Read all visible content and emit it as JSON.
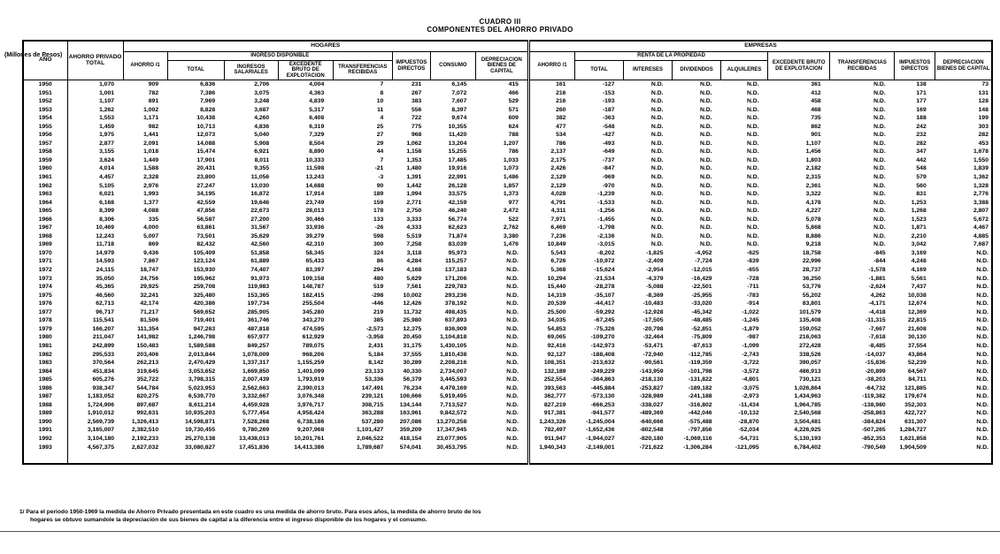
{
  "title": {
    "line1": "CUADRO III",
    "line2": "COMPONENTES DEL AHORRO PRIVADO"
  },
  "units_note": "(Millones de Pesos)",
  "footnote": {
    "line1": "1/ Para el período 1950-1969 la medida de Ahorro  Privado presentada en este cuadro es una medida de ahorro bruto. Para esos años, la medida de ahorro bruto de los",
    "line2": "hogares se obtuvo sumandole la depreciación de sus bienes de capital a la diferencia entre el ingreso disponible de los hogares y el consumo."
  },
  "table": {
    "headers": {
      "ano": "AÑO",
      "ahorro_privado_total": "AHORRO PRIVADO TOTAL",
      "hogares": "HOGARES",
      "empresas": "EMPRESAS",
      "ahorro_1": "AHORRO /1",
      "ingreso_disponible": "INGRESO DISPONIBLE",
      "total": "TOTAL",
      "ingresos_salariales": "INGRESOS SALARIALES",
      "excedente_bruto": "EXCEDENTE BRUTO DE EXPLOTACION",
      "transferencias_recibidas": "TRANSFERENCIAS RECIBIDAS",
      "impuestos_directos": "IMPUESTOS DIRECTOS",
      "consumo": "CONSUMO",
      "depreciacion_bienes": "DEPRECIACION BIENES DE CAPITAL",
      "renta_propiedad": "RENTA DE LA PROPIEDAD",
      "intereses": "INTERESES",
      "dividendos": "DIVIDENDOS",
      "alquileres": "ALQUILERES"
    },
    "rows": [
      [
        "1950",
        "1,070",
        "909",
        "6,836",
        "2,706",
        "4,004",
        "7",
        "231",
        "6,145",
        "415",
        "161",
        "-127",
        "N.D.",
        "N.D.",
        "N.D.",
        "361",
        "N.D.",
        "138",
        "73"
      ],
      [
        "1951",
        "1,001",
        "782",
        "7,386",
        "3,075",
        "4,363",
        "8",
        "267",
        "7,072",
        "466",
        "216",
        "-153",
        "N.D.",
        "N.D.",
        "N.D.",
        "412",
        "N.D.",
        "171",
        "131"
      ],
      [
        "1952",
        "1,107",
        "891",
        "7,969",
        "3,248",
        "4,839",
        "10",
        "383",
        "7,607",
        "529",
        "216",
        "-193",
        "N.D.",
        "N.D.",
        "N.D.",
        "458",
        "N.D.",
        "177",
        "128"
      ],
      [
        "1953",
        "1,262",
        "1,002",
        "8,828",
        "3,687",
        "5,317",
        "11",
        "556",
        "8,397",
        "571",
        "260",
        "-187",
        "N.D.",
        "N.D.",
        "N.D.",
        "468",
        "N.D.",
        "169",
        "148"
      ],
      [
        "1954",
        "1,553",
        "1,171",
        "10,438",
        "4,260",
        "6,408",
        "4",
        "722",
        "9,674",
        "609",
        "382",
        "-363",
        "N.D.",
        "N.D.",
        "N.D.",
        "735",
        "N.D.",
        "188",
        "199"
      ],
      [
        "1955",
        "1,459",
        "982",
        "10,713",
        "4,836",
        "6,319",
        "25",
        "775",
        "10,355",
        "624",
        "477",
        "-548",
        "N.D.",
        "N.D.",
        "N.D.",
        "862",
        "N.D.",
        "242",
        "303"
      ],
      [
        "1956",
        "1,975",
        "1,441",
        "12,073",
        "5,040",
        "7,329",
        "27",
        "968",
        "11,420",
        "788",
        "534",
        "-427",
        "N.D.",
        "N.D.",
        "N.D.",
        "901",
        "N.D.",
        "232",
        "282"
      ],
      [
        "1957",
        "2,877",
        "2,091",
        "14,088",
        "5,908",
        "8,504",
        "29",
        "1,062",
        "13,204",
        "1,207",
        "786",
        "-493",
        "N.D.",
        "N.D.",
        "N.D.",
        "1,107",
        "N.D.",
        "282",
        "453"
      ],
      [
        "1958",
        "3,155",
        "1,018",
        "15,474",
        "6,921",
        "8,890",
        "44",
        "1,158",
        "15,255",
        "786",
        "2,137",
        "-649",
        "N.D.",
        "N.D.",
        "N.D.",
        "1,456",
        "N.D.",
        "347",
        "1,678"
      ],
      [
        "1959",
        "3,624",
        "1,449",
        "17,901",
        "8,011",
        "10,333",
        "7",
        "1,353",
        "17,485",
        "1,033",
        "2,175",
        "-737",
        "N.D.",
        "N.D.",
        "N.D.",
        "1,803",
        "N.D.",
        "442",
        "1,550"
      ],
      [
        "1960",
        "4,014",
        "1,588",
        "20,431",
        "9,355",
        "11,598",
        "-21",
        "1,480",
        "19,916",
        "1,073",
        "2,426",
        "-847",
        "N.D.",
        "N.D.",
        "N.D.",
        "2,182",
        "N.D.",
        "548",
        "1,839"
      ],
      [
        "1961",
        "4,457",
        "2,328",
        "23,800",
        "11,056",
        "13,243",
        "-3",
        "1,391",
        "22,991",
        "1,486",
        "2,129",
        "-969",
        "N.D.",
        "N.D.",
        "N.D.",
        "2,315",
        "N.D.",
        "579",
        "1,362"
      ],
      [
        "1962",
        "5,105",
        "2,976",
        "27,247",
        "13,030",
        "14,688",
        "90",
        "1,442",
        "26,128",
        "1,857",
        "2,129",
        "-970",
        "N.D.",
        "N.D.",
        "N.D.",
        "2,361",
        "N.D.",
        "560",
        "1,328"
      ],
      [
        "1963",
        "6,021",
        "1,993",
        "34,195",
        "16,872",
        "17,914",
        "189",
        "1,994",
        "33,575",
        "1,373",
        "4,028",
        "-1,239",
        "N.D.",
        "N.D.",
        "N.D.",
        "3,322",
        "N.D.",
        "831",
        "2,776"
      ],
      [
        "1964",
        "6,168",
        "1,377",
        "42,559",
        "19,646",
        "23,749",
        "159",
        "2,771",
        "42,159",
        "977",
        "4,791",
        "-1,533",
        "N.D.",
        "N.D.",
        "N.D.",
        "4,178",
        "N.D.",
        "1,253",
        "3,388"
      ],
      [
        "1965",
        "8,399",
        "4,088",
        "47,856",
        "22,673",
        "28,013",
        "178",
        "2,750",
        "46,240",
        "2,472",
        "4,311",
        "-1,256",
        "N.D.",
        "N.D.",
        "N.D.",
        "4,227",
        "N.D.",
        "1,268",
        "2,807"
      ],
      [
        "1966",
        "8,306",
        "335",
        "56,587",
        "27,200",
        "30,466",
        "133",
        "3,333",
        "56,774",
        "522",
        "7,971",
        "-1,455",
        "N.D.",
        "N.D.",
        "N.D.",
        "5,078",
        "N.D.",
        "1,523",
        "5,672"
      ],
      [
        "1967",
        "10,469",
        "4,000",
        "63,861",
        "31,567",
        "33,936",
        "-26",
        "4,333",
        "62,623",
        "2,762",
        "6,469",
        "-1,798",
        "N.D.",
        "N.D.",
        "N.D.",
        "5,868",
        "N.D.",
        "1,871",
        "4,467"
      ],
      [
        "1968",
        "12,243",
        "5,007",
        "73,501",
        "35,629",
        "39,279",
        "598",
        "5,519",
        "71,874",
        "3,380",
        "7,236",
        "-2,136",
        "N.D.",
        "N.D.",
        "N.D.",
        "8,886",
        "N.D.",
        "2,210",
        "4,885"
      ],
      [
        "1969",
        "11,718",
        "869",
        "82,432",
        "42,560",
        "42,310",
        "300",
        "7,258",
        "83,039",
        "1,476",
        "10,849",
        "-3,015",
        "N.D.",
        "N.D.",
        "N.D.",
        "9,218",
        "N.D.",
        "3,042",
        "7,687"
      ],
      [
        "1970",
        "14,979",
        "9,436",
        "105,409",
        "51,858",
        "58,345",
        "324",
        "3,118",
        "95,973",
        "N.D.",
        "5,543",
        "-8,202",
        "-1,825",
        "-4,952",
        "-625",
        "18,758",
        "-845",
        "3,169",
        "N.D."
      ],
      [
        "1971",
        "14,593",
        "7,867",
        "123,124",
        "61,889",
        "65,433",
        "86",
        "4,284",
        "115,257",
        "N.D.",
        "6,726",
        "-10,972",
        "-2,409",
        "-7,724",
        "-839",
        "22,996",
        "-844",
        "4,248",
        "N.D."
      ],
      [
        "1972",
        "24,115",
        "18,747",
        "153,930",
        "74,407",
        "83,397",
        "294",
        "4,168",
        "137,183",
        "N.D.",
        "5,368",
        "-15,624",
        "-2,954",
        "-12,015",
        "-655",
        "28,737",
        "-1,578",
        "4,169",
        "N.D."
      ],
      [
        "1973",
        "35,050",
        "24,756",
        "195,962",
        "91,973",
        "109,158",
        "480",
        "5,629",
        "171,206",
        "N.D.",
        "10,294",
        "-21,534",
        "-4,379",
        "-16,429",
        "-728",
        "36,250",
        "-1,881",
        "5,561",
        "N.D."
      ],
      [
        "1974",
        "45,365",
        "29,925",
        "259,708",
        "119,983",
        "148,787",
        "519",
        "7,561",
        "229,783",
        "N.D.",
        "15,440",
        "-28,278",
        "-5,088",
        "-22,501",
        "-711",
        "53,776",
        "-2,624",
        "7,437",
        "N.D."
      ],
      [
        "1975",
        "46,560",
        "32,241",
        "325,480",
        "153,365",
        "182,415",
        "-298",
        "10,002",
        "293,236",
        "N.D.",
        "14,319",
        "-35,107",
        "-8,369",
        "-25,955",
        "-783",
        "55,202",
        "4,262",
        "10,038",
        "N.D."
      ],
      [
        "1976",
        "62,713",
        "42,174",
        "420,386",
        "197,734",
        "255,504",
        "-446",
        "12,426",
        "378,192",
        "N.D.",
        "20,539",
        "-44,417",
        "-10,483",
        "-33,020",
        "-914",
        "83,801",
        "-4,171",
        "12,674",
        "N.D."
      ],
      [
        "1977",
        "96,717",
        "71,217",
        "569,652",
        "285,905",
        "345,280",
        "219",
        "11,732",
        "498,435",
        "N.D.",
        "25,500",
        "-59,292",
        "-12,928",
        "-45,342",
        "-1,022",
        "101,579",
        "-4,418",
        "12,369",
        "N.D."
      ],
      [
        "1978",
        "115,541",
        "81,506",
        "719,401",
        "361,746",
        "343,270",
        "385",
        "25,980",
        "637,893",
        "N.D.",
        "34,035",
        "-67,245",
        "-17,505",
        "-48,485",
        "-1,245",
        "135,408",
        "-11,315",
        "22,815",
        "N.D."
      ],
      [
        "1979",
        "166,207",
        "111,354",
        "947,263",
        "487,818",
        "474,595",
        "-2,573",
        "12,375",
        "836,909",
        "N.D.",
        "54,853",
        "-75,326",
        "-20,798",
        "-52,851",
        "-1,879",
        "159,052",
        "-7,667",
        "21,608",
        "N.D."
      ],
      [
        "1980",
        "211,047",
        "141,982",
        "1,246,798",
        "657,977",
        "612,929",
        "-3,958",
        "20,450",
        "1,104,818",
        "N.D.",
        "69,065",
        "-109,270",
        "-32,464",
        "-75,809",
        "-987",
        "216,063",
        "-7,618",
        "30,130",
        "N.D."
      ],
      [
        "1981",
        "242,899",
        "150,483",
        "1,589,588",
        "849,257",
        "789,075",
        "2,431",
        "31,175",
        "1,430,105",
        "N.D.",
        "92,416",
        "-142,973",
        "-53,471",
        "-87,613",
        "-1,099",
        "272,428",
        "-8,485",
        "37,554",
        "N.D."
      ],
      [
        "1982",
        "295,533",
        "203,406",
        "2,013,844",
        "1,078,009",
        "968,206",
        "5,184",
        "37,555",
        "1,810,438",
        "N.D.",
        "92,127",
        "-188,408",
        "-72,940",
        "-112,785",
        "-2,743",
        "338,526",
        "-14,037",
        "43,864",
        "N.D."
      ],
      [
        "1983",
        "370,564",
        "262,213",
        "2,470,429",
        "1,337,317",
        "1,155,259",
        "8,142",
        "30,289",
        "2,208,216",
        "N.D.",
        "108,351",
        "-213,632",
        "-90,561",
        "-119,359",
        "-3,722",
        "390,057",
        "-15,836",
        "52,239",
        "N.D."
      ],
      [
        "1984",
        "451,834",
        "319,645",
        "3,053,652",
        "1,669,850",
        "1,401,099",
        "23,133",
        "40,330",
        "2,734,007",
        "N.D.",
        "132,189",
        "-249,229",
        "-143,959",
        "-101,798",
        "-3,572",
        "486,913",
        "-20,899",
        "64,567",
        "N.D."
      ],
      [
        "1985",
        "605,276",
        "352,722",
        "3,798,315",
        "2,007,439",
        "1,793,919",
        "53,336",
        "56,379",
        "3,445,593",
        "N.D.",
        "252,554",
        "-364,863",
        "-218,130",
        "-131,822",
        "-4,801",
        "730,121",
        "-38,203",
        "84,711",
        "N.D."
      ],
      [
        "1986",
        "938,347",
        "544,784",
        "5,023,953",
        "2,562,663",
        "2,390,013",
        "147,491",
        "76,234",
        "4,479,169",
        "N.D.",
        "393,563",
        "-445,884",
        "-253,827",
        "-189,182",
        "-3,075",
        "1,026,864",
        "-64,732",
        "121,885",
        "N.D."
      ],
      [
        "1987",
        "1,183,052",
        "820,275",
        "6,539,770",
        "3,332,667",
        "3,076,348",
        "239,121",
        "106,666",
        "5,919,495",
        "N.D.",
        "362,777",
        "-573,130",
        "-328,989",
        "-241,188",
        "-2,973",
        "1,434,963",
        "-119,382",
        "179,674",
        "N.D."
      ],
      [
        "1988",
        "1,724,906",
        "897,687",
        "8,611,214",
        "4,459,928",
        "3,976,717",
        "308,715",
        "134,144",
        "7,713,527",
        "N.D.",
        "827,219",
        "-666,253",
        "-338,027",
        "-316,802",
        "-11,434",
        "1,964,785",
        "-138,980",
        "352,303",
        "N.D."
      ],
      [
        "1989",
        "1,910,012",
        "992,631",
        "10,935,203",
        "5,777,454",
        "4,958,424",
        "363,288",
        "163,961",
        "9,842,572",
        "N.D.",
        "917,381",
        "-941,577",
        "-489,369",
        "-442,046",
        "-10,132",
        "2,540,568",
        "-258,863",
        "422,727",
        "N.D."
      ],
      [
        "1990",
        "2,569,739",
        "1,326,413",
        "14,598,871",
        "7,528,268",
        "6,738,186",
        "537,280",
        "207,086",
        "13,270,258",
        "N.D.",
        "1,243,326",
        "-1,245,004",
        "-640,666",
        "-575,488",
        "-28,870",
        "3,504,481",
        "-384,824",
        "631,307",
        "N.D."
      ],
      [
        "1991",
        "3,165,007",
        "2,382,510",
        "19,730,455",
        "9,780,269",
        "9,207,968",
        "1,101,427",
        "359,209",
        "17,347,945",
        "N.D.",
        "782,497",
        "-1,652,436",
        "-802,548",
        "-797,856",
        "-52,034",
        "4,226,925",
        "-507,265",
        "1,284,727",
        "N.D."
      ],
      [
        "1992",
        "3,104,180",
        "2,192,233",
        "25,270,138",
        "13,438,013",
        "10,201,761",
        "2,046,522",
        "418,154",
        "23,077,905",
        "N.D.",
        "911,947",
        "-1,944,027",
        "-820,180",
        "-1,069,116",
        "-54,731",
        "5,130,193",
        "-852,353",
        "1,621,858",
        "N.D."
      ],
      [
        "1993",
        "4,567,375",
        "2,627,032",
        "33,080,827",
        "17,451,836",
        "14,413,386",
        "1,789,687",
        "574,041",
        "30,453,795",
        "N.D.",
        "1,940,343",
        "-2,149,001",
        "-721,622",
        "-1,306,284",
        "-121,095",
        "6,784,402",
        "-790,549",
        "1,904,509",
        "N.D."
      ]
    ]
  }
}
